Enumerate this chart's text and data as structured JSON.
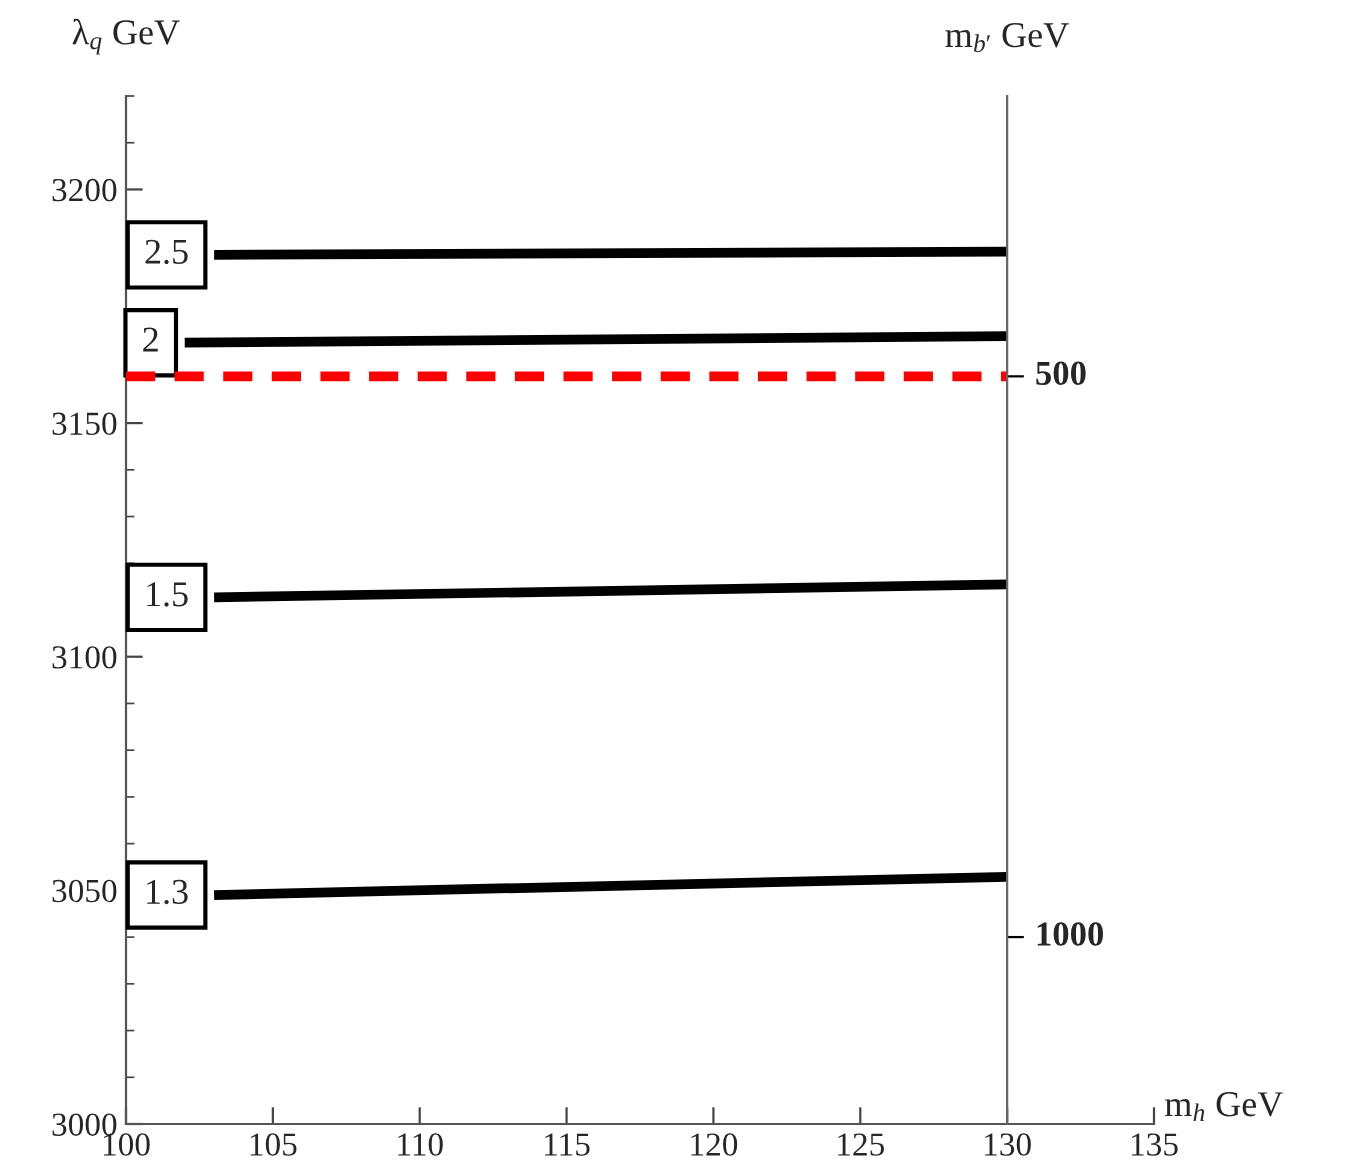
{
  "chart_data": {
    "type": "line",
    "xlabel": "m$_{h}$ GeV",
    "ylabel": "λ$_{q}$ GeV",
    "y2label": "m$_{b′}$ GeV",
    "xlim": [
      100,
      135
    ],
    "xticks": [
      100,
      105,
      110,
      115,
      120,
      125,
      130,
      135
    ],
    "ylim": [
      3000,
      3220
    ],
    "yticks": [
      3000,
      3050,
      3100,
      3150,
      3200
    ],
    "y2lim": [
      1166.7,
      250
    ],
    "y2ticks": [
      500,
      1000
    ],
    "grid": false,
    "marker": "none",
    "line_style": "solid",
    "series": [
      {
        "name": "2.5",
        "color": "#000000",
        "x": [
          103,
          130
        ],
        "values": [
          3186,
          3186.7
        ]
      },
      {
        "name": "2",
        "color": "#000000",
        "x": [
          102,
          130
        ],
        "values": [
          3167.2,
          3168.6
        ]
      },
      {
        "name": "1.5",
        "color": "#000000",
        "x": [
          103,
          130
        ],
        "values": [
          3112.7,
          3115.5
        ]
      },
      {
        "name": "1.3",
        "color": "#000000",
        "x": [
          103,
          130
        ],
        "values": [
          3049,
          3052.9
        ]
      }
    ],
    "ref_lines": [
      {
        "axis": "y",
        "value": 3160,
        "color": "#ff0000",
        "line_style": "dashed"
      }
    ]
  }
}
